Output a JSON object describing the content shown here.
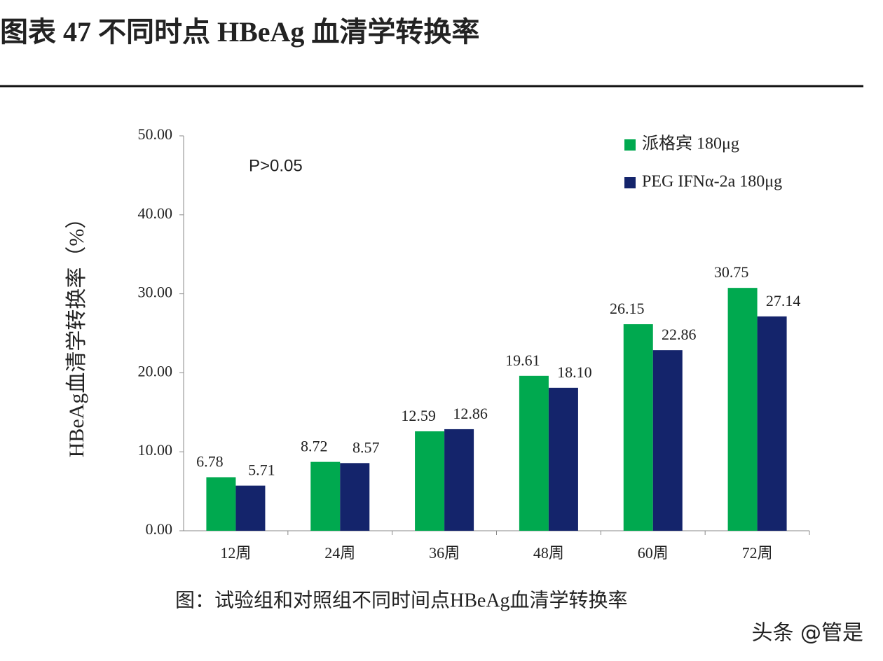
{
  "chart_data": {
    "type": "bar",
    "title": "图表 47 不同时点 HBeAg 血清学转换率",
    "ylabel": "HBeAg血清学转换率（%）",
    "annotation": "P>0.05",
    "caption": "图：试验组和对照组不同时间点HBeAg血清学转换率",
    "watermark": "头条 @管是",
    "categories": [
      "12周",
      "24周",
      "36周",
      "48周",
      "60周",
      "72周"
    ],
    "series": [
      {
        "name": "派格宾 180μg",
        "color": "#00a94f",
        "values": [
          6.78,
          8.72,
          12.59,
          19.61,
          26.15,
          30.75
        ],
        "value_labels": [
          "6.78",
          "8.72",
          "12.59",
          "19.61",
          "26.15",
          "30.75"
        ]
      },
      {
        "name": "PEG IFNα-2a 180μg",
        "color": "#14246b",
        "values": [
          5.71,
          8.57,
          12.86,
          18.1,
          22.86,
          27.14
        ],
        "value_labels": [
          "5.71",
          "8.57",
          "12.86",
          "18.10",
          "22.86",
          "27.14"
        ]
      }
    ],
    "ylim": [
      0,
      50
    ],
    "yticks": [
      {
        "value": 0,
        "label": "0.00"
      },
      {
        "value": 10,
        "label": "10.00"
      },
      {
        "value": 20,
        "label": "20.00"
      },
      {
        "value": 30,
        "label": "30.00"
      },
      {
        "value": 40,
        "label": "40.00"
      },
      {
        "value": 50,
        "label": "50.00"
      }
    ],
    "grid": false,
    "legend": "top-right"
  }
}
